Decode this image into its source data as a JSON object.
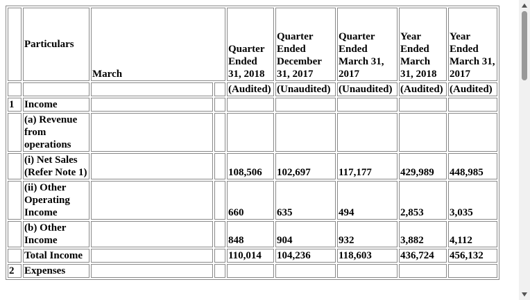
{
  "table": {
    "header": {
      "particulars": "Particulars",
      "march": "March",
      "periods": [
        "Quarter Ended 31, 2018",
        "Quarter Ended December 31, 2017",
        "Quarter Ended March 31, 2017",
        "Year Ended March 31, 2018",
        "Year Ended March 31, 2017"
      ]
    },
    "audit": [
      "(Audited)",
      "(Unaudited)",
      "(Unaudited)",
      "(Audited)",
      "(Audited)"
    ],
    "rows": [
      {
        "no": "1",
        "label": "Income",
        "values": [
          null,
          null,
          null,
          null,
          null
        ]
      },
      {
        "no": null,
        "label": "(a) Revenue from operations",
        "values": [
          null,
          null,
          null,
          null,
          null
        ]
      },
      {
        "no": null,
        "label": "(i) Net Sales (Refer Note 1)",
        "values": [
          "108,506",
          "102,697",
          "117,177",
          "429,989",
          "448,985"
        ]
      },
      {
        "no": null,
        "label": "(ii) Other Operating Income",
        "values": [
          "660",
          "635",
          "494",
          "2,853",
          "3,035"
        ]
      },
      {
        "no": null,
        "label": "(b) Other Income",
        "values": [
          "848",
          "904",
          "932",
          "3,882",
          "4,112"
        ]
      },
      {
        "no": null,
        "label": "Total Income",
        "values": [
          "110,014",
          "104,236",
          "118,603",
          "436,724",
          "456,132"
        ]
      },
      {
        "no": "2",
        "label": "Expenses",
        "values": [
          null,
          null,
          null,
          null,
          null
        ]
      }
    ]
  }
}
